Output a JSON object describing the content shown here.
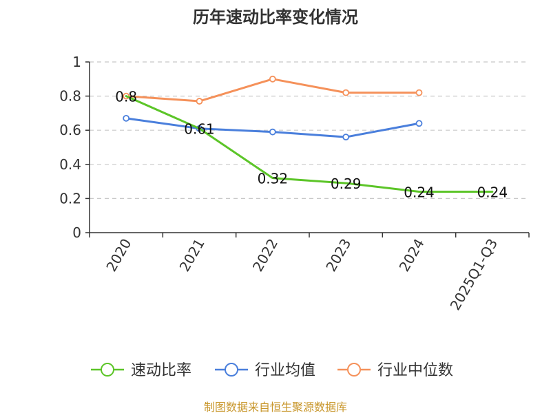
{
  "chart_data": {
    "type": "line",
    "title": "历年速动比率变化情况",
    "categories": [
      "2020",
      "2021",
      "2022",
      "2023",
      "2024",
      "2025Q1-Q3"
    ],
    "xlabel": "",
    "ylabel": "",
    "ylim": [
      0,
      1
    ],
    "yticks": [
      "0",
      "0.2",
      "0.4",
      "0.6",
      "0.8",
      "1"
    ],
    "grid": true,
    "legend_position": "bottom",
    "series": [
      {
        "name": "速动比率",
        "color": "#5cc528",
        "values": [
          0.8,
          0.61,
          0.32,
          0.29,
          0.24,
          0.24
        ],
        "labels": [
          "0.8",
          "0.61",
          "0.32",
          "0.29",
          "0.24",
          "0.24"
        ]
      },
      {
        "name": "行业均值",
        "color": "#4a7fdc",
        "values": [
          0.67,
          0.61,
          0.59,
          0.56,
          0.64,
          null
        ]
      },
      {
        "name": "行业中位数",
        "color": "#f5915a",
        "values": [
          0.8,
          0.77,
          0.9,
          0.82,
          0.82,
          null
        ]
      }
    ],
    "source": "制图数据来自恒生聚源数据库"
  }
}
